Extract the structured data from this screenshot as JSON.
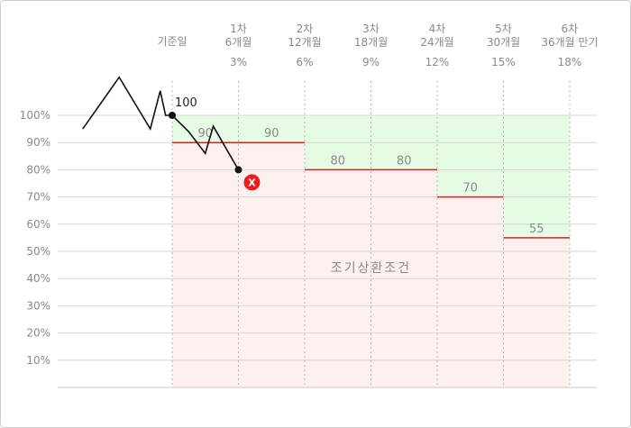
{
  "chart_data": {
    "type": "line",
    "title": "",
    "xlabel": "",
    "ylabel": "",
    "ylim": [
      0,
      100
    ],
    "y_ticks": [
      "10%",
      "20%",
      "30%",
      "40%",
      "50%",
      "60%",
      "70%",
      "80%",
      "90%",
      "100%"
    ],
    "start_label": "기준일",
    "periods": [
      {
        "round": "1차",
        "months": "6개월",
        "coupon": "3%",
        "barrier": 90
      },
      {
        "round": "2차",
        "months": "12개월",
        "coupon": "6%",
        "barrier": 90
      },
      {
        "round": "3차",
        "months": "18개월",
        "coupon": "9%",
        "barrier": 80
      },
      {
        "round": "4차",
        "months": "24개월",
        "coupon": "12%",
        "barrier": 80
      },
      {
        "round": "5차",
        "months": "30개월",
        "coupon": "15%",
        "barrier": 70
      },
      {
        "round": "6차",
        "months": "36개월 만기",
        "coupon": "18%",
        "barrier": 55
      }
    ],
    "start_value": 100,
    "price_path": {
      "x": [
        -1.35,
        -0.8,
        -0.33,
        -0.18,
        -0.1,
        0,
        0.25,
        0.5,
        0.62,
        1.0
      ],
      "y": [
        95,
        114,
        95,
        109,
        100,
        100,
        94,
        86,
        96,
        80
      ]
    },
    "redemption_zone_label": "조기상환조건",
    "knock_event": {
      "period": 1,
      "value": 80,
      "symbol": "x-circle-icon",
      "mark": "X"
    },
    "colors": {
      "above_fill": "#e6fbe3",
      "below_fill": "#fdf1ef",
      "barrier_line": "#e02020",
      "price_line": "#111111",
      "event_marker": "#ef1c1c"
    }
  }
}
